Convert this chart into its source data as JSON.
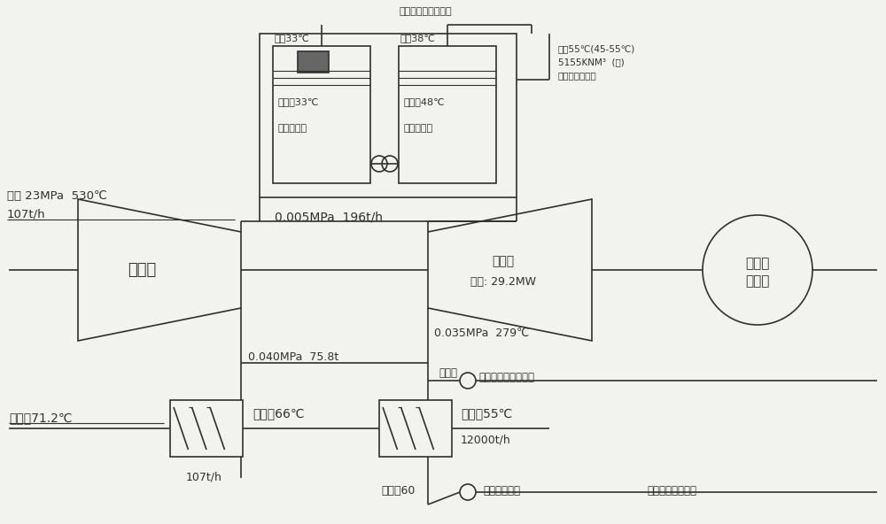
{
  "bg_color": "#f2f2ee",
  "lc": "#303030",
  "lw": 1.2,
  "turbine_label": "汽轮机",
  "compressor_label1": "压缩机",
  "compressor_label2": "功率: 29.2MW",
  "generator_label1": "发电机",
  "generator_label2": "电动机",
  "steam_label1": "蒸汽 23MPa  530℃",
  "steam_label2": "107t/h",
  "low_p": "0.005MPa  196t/h",
  "mid_p": "0.040MPa  75.8t",
  "right_p": "0.035MPa  279℃",
  "hw71": "热网水71.2℃",
  "hw66_left": "热网水66℃",
  "hw55_right": "热网水55℃",
  "hw60": "热网水60",
  "flow107": "107t/h",
  "flow12000": "12000t/h",
  "vacuum": "真空泵",
  "noncon": "不凝结气体排入大气",
  "drain": "加热器疏水泵",
  "lowsalt": "低盐分水回收利用",
  "box1_top": "乏气33℃",
  "box1_water": "冷却水33℃",
  "box1_name": "一级蒸发器",
  "box2_top": "蒸气38℃",
  "box2_water": "冷却水48℃",
  "box2_name": "一级蒸发器",
  "output_gas1": "热气55℃(45-55℃)",
  "output_gas2": "5155KNM³  (副)",
  "output_gas3": "锅炉腔低温热气",
  "header": "锅炉腔低温热气调速"
}
